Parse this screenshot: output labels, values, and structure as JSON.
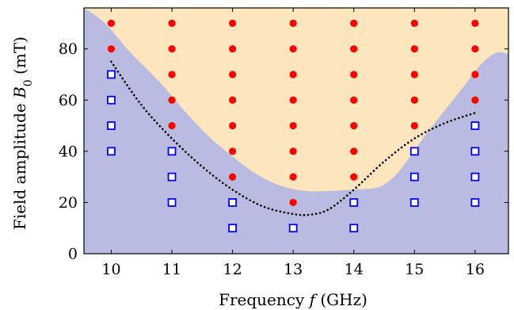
{
  "chart_data": {
    "type": "scatter",
    "title": "",
    "xlabel": "Frequency f (GHz)",
    "xlabel_parts": {
      "prefix": "Frequency ",
      "symbol": "f",
      "suffix": " (GHz)"
    },
    "ylabel": "Field amplitude B0 (mT)",
    "ylabel_parts": {
      "prefix": "Field amplitude ",
      "symbol": "B",
      "subscript": "0",
      "suffix": " (mT)"
    },
    "xlim": [
      9.55,
      16.55
    ],
    "ylim": [
      0,
      96
    ],
    "xticks": [
      10,
      11,
      12,
      13,
      14,
      15,
      16
    ],
    "yticks": [
      0,
      20,
      40,
      60,
      80
    ],
    "grid": false,
    "legend": "none",
    "series": [
      {
        "marker": "filled-circle",
        "color": "#ff0000",
        "points": [
          [
            10,
            90
          ],
          [
            10,
            80
          ],
          [
            11,
            90
          ],
          [
            11,
            80
          ],
          [
            11,
            70
          ],
          [
            11,
            60
          ],
          [
            11,
            50
          ],
          [
            12,
            90
          ],
          [
            12,
            80
          ],
          [
            12,
            70
          ],
          [
            12,
            60
          ],
          [
            12,
            50
          ],
          [
            12,
            40
          ],
          [
            12,
            30
          ],
          [
            13,
            90
          ],
          [
            13,
            80
          ],
          [
            13,
            70
          ],
          [
            13,
            60
          ],
          [
            13,
            50
          ],
          [
            13,
            40
          ],
          [
            13,
            30
          ],
          [
            13,
            20
          ],
          [
            14,
            90
          ],
          [
            14,
            80
          ],
          [
            14,
            70
          ],
          [
            14,
            60
          ],
          [
            14,
            50
          ],
          [
            14,
            40
          ],
          [
            14,
            30
          ],
          [
            15,
            90
          ],
          [
            15,
            80
          ],
          [
            15,
            70
          ],
          [
            15,
            60
          ],
          [
            15,
            50
          ],
          [
            16,
            90
          ],
          [
            16,
            80
          ],
          [
            16,
            70
          ],
          [
            16,
            60
          ]
        ]
      },
      {
        "marker": "open-square",
        "color": "#0000ff",
        "points": [
          [
            10,
            70
          ],
          [
            10,
            60
          ],
          [
            10,
            50
          ],
          [
            10,
            40
          ],
          [
            11,
            40
          ],
          [
            11,
            30
          ],
          [
            11,
            20
          ],
          [
            12,
            20
          ],
          [
            12,
            10
          ],
          [
            13,
            10
          ],
          [
            14,
            20
          ],
          [
            14,
            10
          ],
          [
            15,
            40
          ],
          [
            15,
            30
          ],
          [
            15,
            20
          ],
          [
            16,
            50
          ],
          [
            16,
            40
          ],
          [
            16,
            30
          ],
          [
            16,
            20
          ]
        ]
      }
    ],
    "threshold_curve": {
      "style": "dotted",
      "color": "#000000",
      "points": [
        [
          10.0,
          75
        ],
        [
          10.5,
          58
        ],
        [
          11.0,
          45
        ],
        [
          11.5,
          34
        ],
        [
          12.0,
          25
        ],
        [
          12.5,
          18.5
        ],
        [
          13.0,
          15.5
        ],
        [
          13.3,
          15.3
        ],
        [
          13.6,
          17.5
        ],
        [
          14.0,
          25
        ],
        [
          14.5,
          36
        ],
        [
          15.0,
          45
        ],
        [
          15.5,
          51
        ],
        [
          16.0,
          55
        ]
      ]
    },
    "regions": [
      {
        "name": "upper",
        "color": "#fde6bd"
      },
      {
        "name": "lower",
        "color": "#babbe0",
        "boundary": [
          [
            9.55,
            96
          ],
          [
            9.9,
            90
          ],
          [
            10.3,
            79
          ],
          [
            10.8,
            67
          ],
          [
            11.2,
            56
          ],
          [
            11.6,
            46
          ],
          [
            12.0,
            38
          ],
          [
            12.4,
            31
          ],
          [
            12.8,
            26.5
          ],
          [
            13.2,
            24.5
          ],
          [
            13.6,
            24.5
          ],
          [
            14.0,
            25
          ],
          [
            14.3,
            25.5
          ],
          [
            14.5,
            27
          ],
          [
            14.7,
            31
          ],
          [
            14.9,
            37
          ],
          [
            15.2,
            47
          ],
          [
            15.5,
            56
          ],
          [
            15.8,
            65
          ],
          [
            16.1,
            74
          ],
          [
            16.35,
            78.5
          ],
          [
            16.55,
            78
          ]
        ]
      }
    ]
  }
}
